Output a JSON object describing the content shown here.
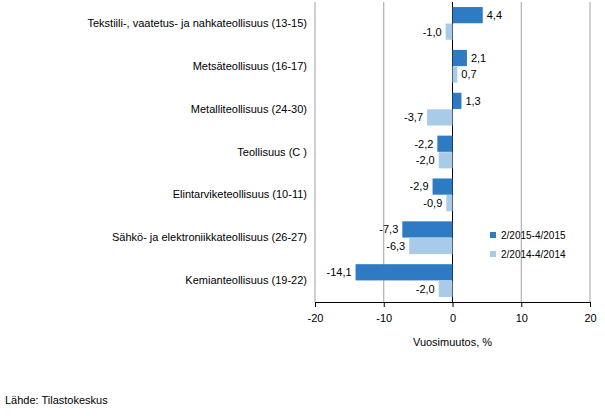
{
  "chart_data": {
    "type": "bar",
    "orientation": "horizontal",
    "categories": [
      "Tekstiili-, vaatetus- ja nahkateollisuus (13-15)",
      "Metsäteollisuus (16-17)",
      "Metalliteollisuus (24-30)",
      "Teollisuus (C )",
      "Elintarviketeollisuus (10-11)",
      "Sähkö- ja elektroniikkateollisuus (26-27)",
      "Kemianteollisuus (19-22)"
    ],
    "series": [
      {
        "name": "2/2015-4/2015",
        "color": "#2e7bc4",
        "values": [
          4.4,
          2.1,
          1.3,
          -2.2,
          -2.9,
          -7.3,
          -14.1
        ],
        "value_labels": [
          "4,4",
          "2,1",
          "1,3",
          "-2,2",
          "-2,9",
          "-7,3",
          "-14,1"
        ]
      },
      {
        "name": "2/2014-4/2014",
        "color": "#a9cbea",
        "values": [
          -1.0,
          0.7,
          -3.7,
          -2.0,
          -0.9,
          -6.3,
          -2.0
        ],
        "value_labels": [
          "-1,0",
          "0,7",
          "-3,7",
          "-2,0",
          "-0,9",
          "-6,3",
          "-2,0"
        ]
      }
    ],
    "xlabel": "Vuosimuutos, %",
    "source": "Lähde: Tilastokeskus",
    "xlim": [
      -20,
      20
    ],
    "xticks": [
      -20,
      -10,
      0,
      10,
      20
    ],
    "grid": true,
    "legend": "lower right",
    "data_labels": true
  }
}
